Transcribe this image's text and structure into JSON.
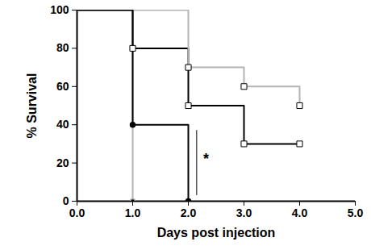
{
  "chart_data": {
    "type": "line",
    "line_style": "step",
    "x_label": "Days post injection",
    "y_label": "% Survival",
    "xlim": [
      0,
      5
    ],
    "xticks": [
      0,
      1,
      2,
      3,
      4,
      5
    ],
    "ylim": [
      0,
      100
    ],
    "yticks": [
      0,
      20,
      40,
      60,
      80,
      100
    ],
    "grid": false,
    "series": [
      {
        "color": "#000000",
        "marker": "square",
        "x": [
          0,
          1,
          2,
          3,
          4
        ],
        "values": [
          100,
          80,
          50,
          30,
          30
        ]
      },
      {
        "color": "#b4b4b4",
        "marker": "square",
        "x": [
          0,
          2,
          3,
          4
        ],
        "values": [
          100,
          70,
          60,
          50
        ]
      },
      {
        "color": "#b4b4b4",
        "marker": "circle",
        "x": [
          0,
          1
        ],
        "values": [
          100,
          0
        ]
      },
      {
        "color": "#000000",
        "marker": "circle",
        "x": [
          0,
          1,
          2
        ],
        "values": [
          100,
          40,
          0
        ]
      }
    ],
    "annotations": [
      {
        "text": "*",
        "x": 2.32,
        "y": 22,
        "line_x": 2.15,
        "line_y": [
          3,
          37
        ]
      }
    ]
  }
}
